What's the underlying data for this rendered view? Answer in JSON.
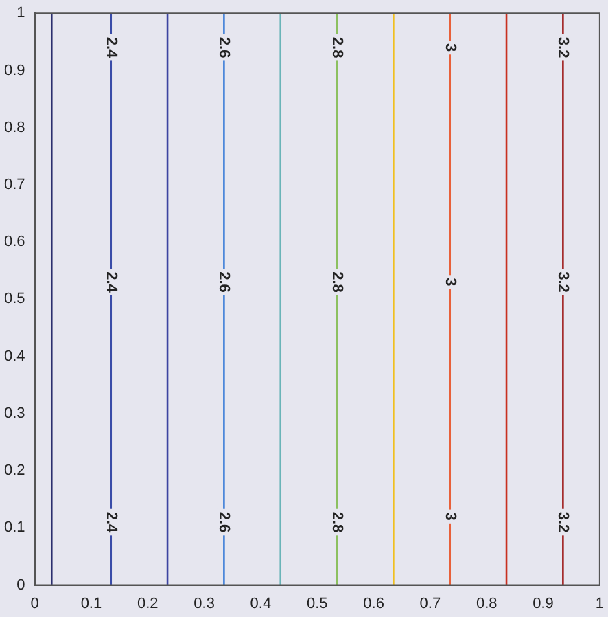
{
  "chart_data": {
    "type": "line",
    "xlim": [
      0,
      1
    ],
    "ylim": [
      0,
      1
    ],
    "xticks": [
      0,
      0.1,
      0.2,
      0.3,
      0.4,
      0.5,
      0.6,
      0.7,
      0.8,
      0.9,
      1
    ],
    "yticks": [
      0,
      0.1,
      0.2,
      0.3,
      0.4,
      0.5,
      0.6,
      0.7,
      0.8,
      0.9,
      1
    ],
    "marker": "none",
    "legend": false,
    "grid": false,
    "series": [
      {
        "x": [
          0.03,
          0.03
        ],
        "values": [
          0,
          1
        ],
        "color": "#2c2f6e"
      },
      {
        "x": [
          0.135,
          0.135
        ],
        "values": [
          0,
          1
        ],
        "color": "#3a4ca8"
      },
      {
        "x": [
          0.235,
          0.235
        ],
        "values": [
          0,
          1
        ],
        "color": "#3c44a0"
      },
      {
        "x": [
          0.335,
          0.335
        ],
        "values": [
          0,
          1
        ],
        "color": "#3f7fd8"
      },
      {
        "x": [
          0.435,
          0.435
        ],
        "values": [
          0,
          1
        ],
        "color": "#6ab4b8"
      },
      {
        "x": [
          0.535,
          0.535
        ],
        "values": [
          0,
          1
        ],
        "color": "#8cc060"
      },
      {
        "x": [
          0.635,
          0.635
        ],
        "values": [
          0,
          1
        ],
        "color": "#f0c020"
      },
      {
        "x": [
          0.735,
          0.735
        ],
        "values": [
          0,
          1
        ],
        "color": "#e8603a"
      },
      {
        "x": [
          0.835,
          0.835
        ],
        "values": [
          0,
          1
        ],
        "color": "#c83020"
      },
      {
        "x": [
          0.935,
          0.935
        ],
        "values": [
          0,
          1
        ],
        "color": "#a02020"
      }
    ],
    "annotations": [
      {
        "text": "2.4",
        "x": 0.135,
        "y": 0.94
      },
      {
        "text": "2.4",
        "x": 0.135,
        "y": 0.53
      },
      {
        "text": "2.4",
        "x": 0.135,
        "y": 0.11
      },
      {
        "text": "2.6",
        "x": 0.335,
        "y": 0.94
      },
      {
        "text": "2.6",
        "x": 0.335,
        "y": 0.53
      },
      {
        "text": "2.6",
        "x": 0.335,
        "y": 0.11
      },
      {
        "text": "2.8",
        "x": 0.535,
        "y": 0.94
      },
      {
        "text": "2.8",
        "x": 0.535,
        "y": 0.53
      },
      {
        "text": "2.8",
        "x": 0.535,
        "y": 0.11
      },
      {
        "text": "3",
        "x": 0.735,
        "y": 0.94
      },
      {
        "text": "3",
        "x": 0.735,
        "y": 0.53
      },
      {
        "text": "3",
        "x": 0.735,
        "y": 0.12
      },
      {
        "text": "3.2",
        "x": 0.935,
        "y": 0.94
      },
      {
        "text": "3.2",
        "x": 0.935,
        "y": 0.53
      },
      {
        "text": "3.2",
        "x": 0.935,
        "y": 0.11
      }
    ]
  }
}
